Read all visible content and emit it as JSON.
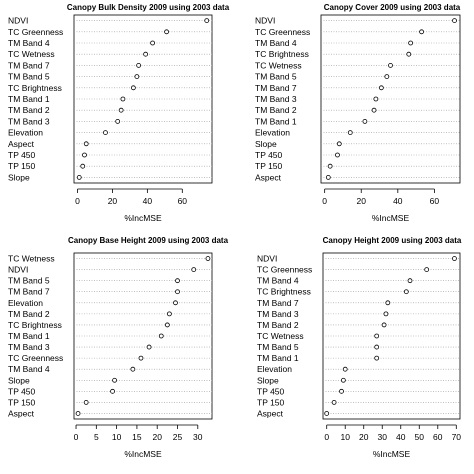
{
  "chart_data": [
    {
      "type": "scatter",
      "title": "Canopy Bulk Density 2009 using 2003 data",
      "xlabel": "%IncMSE",
      "ylabel": "",
      "xlim": [
        -2,
        77
      ],
      "xticks": [
        0,
        20,
        40,
        60
      ],
      "categories": [
        "NDVI",
        "TC Greenness",
        "TM Band 4",
        "TC Wetness",
        "TM Band 7",
        "TM Band 5",
        "TC Brightness",
        "TM Band 1",
        "TM Band 2",
        "TM Band 3",
        "Elevation",
        "Aspect",
        "TP 450",
        "TP 150",
        "Slope"
      ],
      "values": [
        74,
        51,
        43,
        39,
        35,
        34,
        32,
        26,
        25,
        23,
        16,
        5,
        4,
        3,
        1
      ]
    },
    {
      "type": "scatter",
      "title": "Canopy Cover 2009 using 2003 data",
      "xlabel": "%IncMSE",
      "ylabel": "",
      "xlim": [
        -2,
        74
      ],
      "xticks": [
        0,
        20,
        40,
        60
      ],
      "categories": [
        "NDVI",
        "TC Greenness",
        "TM Band 4",
        "TC Brightness",
        "TC Wetness",
        "TM Band 5",
        "TM Band 7",
        "TM Band 3",
        "TM Band 2",
        "TM Band 1",
        "Elevation",
        "Slope",
        "TP 450",
        "TP 150",
        "Aspect"
      ],
      "values": [
        71,
        53,
        47,
        46,
        36,
        34,
        31,
        28,
        27,
        22,
        14,
        8,
        7,
        3,
        2
      ]
    },
    {
      "type": "scatter",
      "title": "Canopy Base Height 2009 using 2003 data",
      "xlabel": "%IncMSE",
      "ylabel": "",
      "xlim": [
        -0.5,
        33.5
      ],
      "xticks": [
        0,
        5,
        10,
        15,
        20,
        25,
        30
      ],
      "categories": [
        "TC Wetness",
        "NDVI",
        "TM Band 5",
        "TM Band 7",
        "Elevation",
        "TM Band 2",
        "TC Brightness",
        "TM Band 1",
        "TM Band 3",
        "TC Greenness",
        "TM Band 4",
        "Slope",
        "TP 450",
        "TP 150",
        "Aspect"
      ],
      "values": [
        32.5,
        29,
        25,
        25,
        24.5,
        23,
        22.5,
        21,
        18,
        16,
        14,
        9.5,
        9,
        2.5,
        0.5
      ]
    },
    {
      "type": "scatter",
      "title": "Canopy Height 2009 using 2003 data",
      "xlabel": "%IncMSE",
      "ylabel": "",
      "xlim": [
        -2,
        72
      ],
      "xticks": [
        0,
        10,
        20,
        30,
        40,
        50,
        60,
        70
      ],
      "categories": [
        "NDVI",
        "TC Greenness",
        "TM Band 4",
        "TC Brightness",
        "TM Band 7",
        "TM Band 3",
        "TM Band 2",
        "TC Wetness",
        "TM Band 5",
        "TM Band 1",
        "Elevation",
        "Slope",
        "TP 450",
        "TP 150",
        "Aspect"
      ],
      "values": [
        69,
        54,
        45,
        43,
        33,
        32,
        31,
        27,
        27,
        27,
        10,
        9,
        8,
        4,
        0
      ]
    }
  ]
}
